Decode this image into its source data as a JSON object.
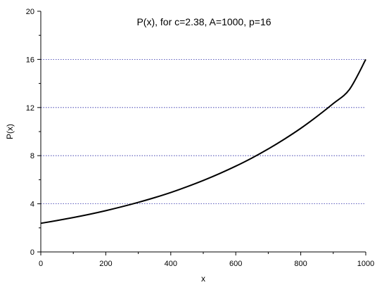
{
  "chart_data": {
    "type": "line",
    "title": "P(x),  for c=2.38,  A=1000,  p=16",
    "xlabel": "x",
    "ylabel": "P(x)",
    "xlim": [
      0,
      1000
    ],
    "ylim": [
      0,
      20
    ],
    "x_ticks": [
      0,
      200,
      400,
      600,
      800,
      1000
    ],
    "y_ticks": [
      0,
      4,
      8,
      12,
      16,
      20
    ],
    "x_tick_labels": [
      "0",
      "200",
      "400",
      "600",
      "800",
      "1000"
    ],
    "y_tick_labels": [
      "0",
      "4",
      "8",
      "12",
      "16",
      "20"
    ],
    "grid": "horizontal dotted at 4, 8, 12, 16",
    "legend": "none",
    "series": [
      {
        "line_color": "#000000",
        "x": [
          0,
          50,
          100,
          150,
          200,
          250,
          300,
          350,
          400,
          450,
          500,
          550,
          600,
          650,
          700,
          750,
          800,
          850,
          900,
          950,
          1000
        ],
        "y": [
          2.38,
          2.61,
          2.86,
          3.13,
          3.43,
          3.76,
          4.12,
          4.51,
          4.94,
          5.42,
          5.94,
          6.51,
          7.13,
          7.81,
          8.56,
          9.38,
          10.27,
          11.26,
          12.33,
          13.51,
          16.0
        ]
      }
    ]
  }
}
